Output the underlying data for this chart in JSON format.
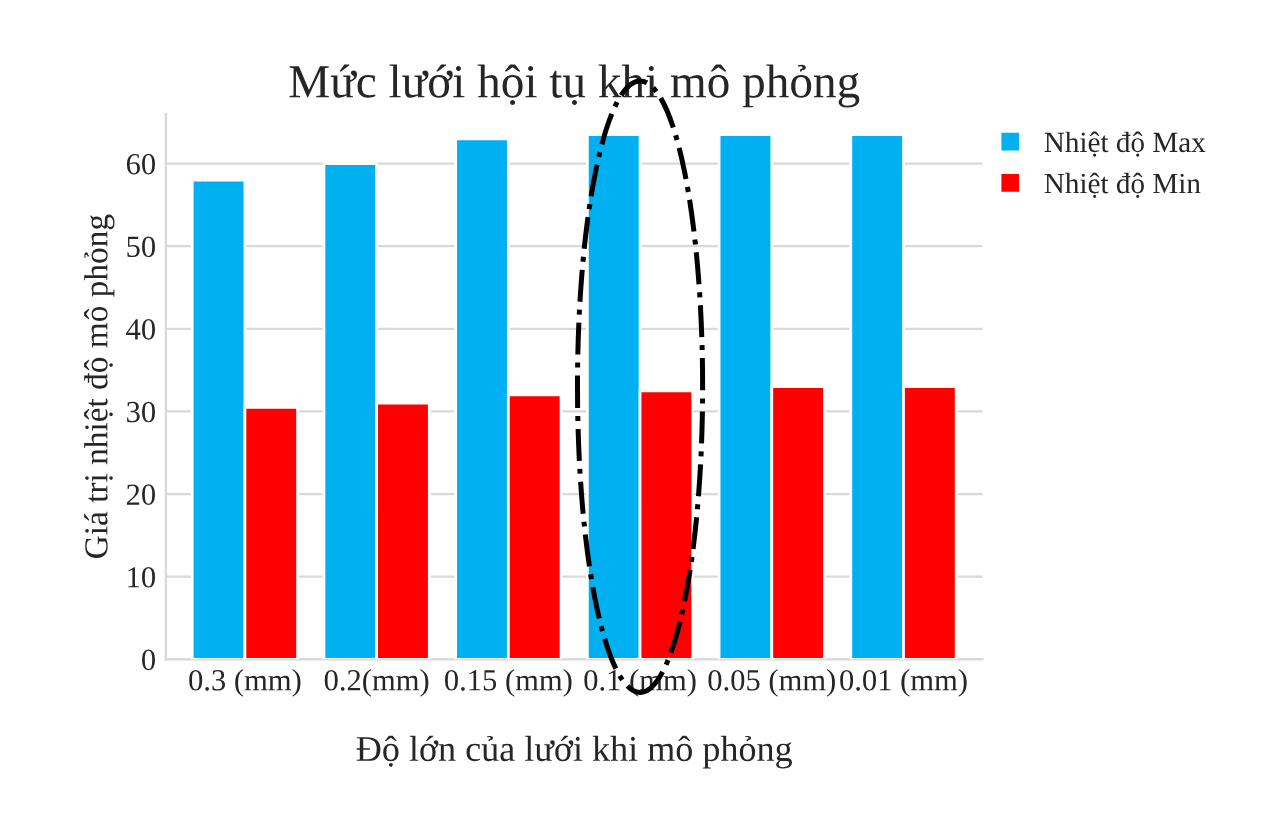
{
  "chart_data": {
    "type": "bar",
    "title": "Mức lưới hội tụ khi mô phỏng",
    "xlabel": "Độ lớn của lưới khi mô phỏng",
    "ylabel": "Giá trị nhiệt độ mô phỏng",
    "categories": [
      "0.3 (mm)",
      "0.2(mm)",
      "0.15 (mm)",
      "0.1 (mm)",
      "0.05 (mm)",
      "0.01 (mm)"
    ],
    "series": [
      {
        "name": "Nhiệt độ Max",
        "color": "#00b0f0",
        "values": [
          58,
          60,
          63,
          63.5,
          63.5,
          63.5
        ]
      },
      {
        "name": "Nhiệt độ Min",
        "color": "#ff0000",
        "values": [
          30.5,
          31,
          32,
          32.5,
          33,
          33
        ]
      }
    ],
    "ylim": [
      0,
      66
    ],
    "yticks": [
      0,
      10,
      20,
      30,
      40,
      50,
      60
    ],
    "grid": "y",
    "legend": "right"
  }
}
